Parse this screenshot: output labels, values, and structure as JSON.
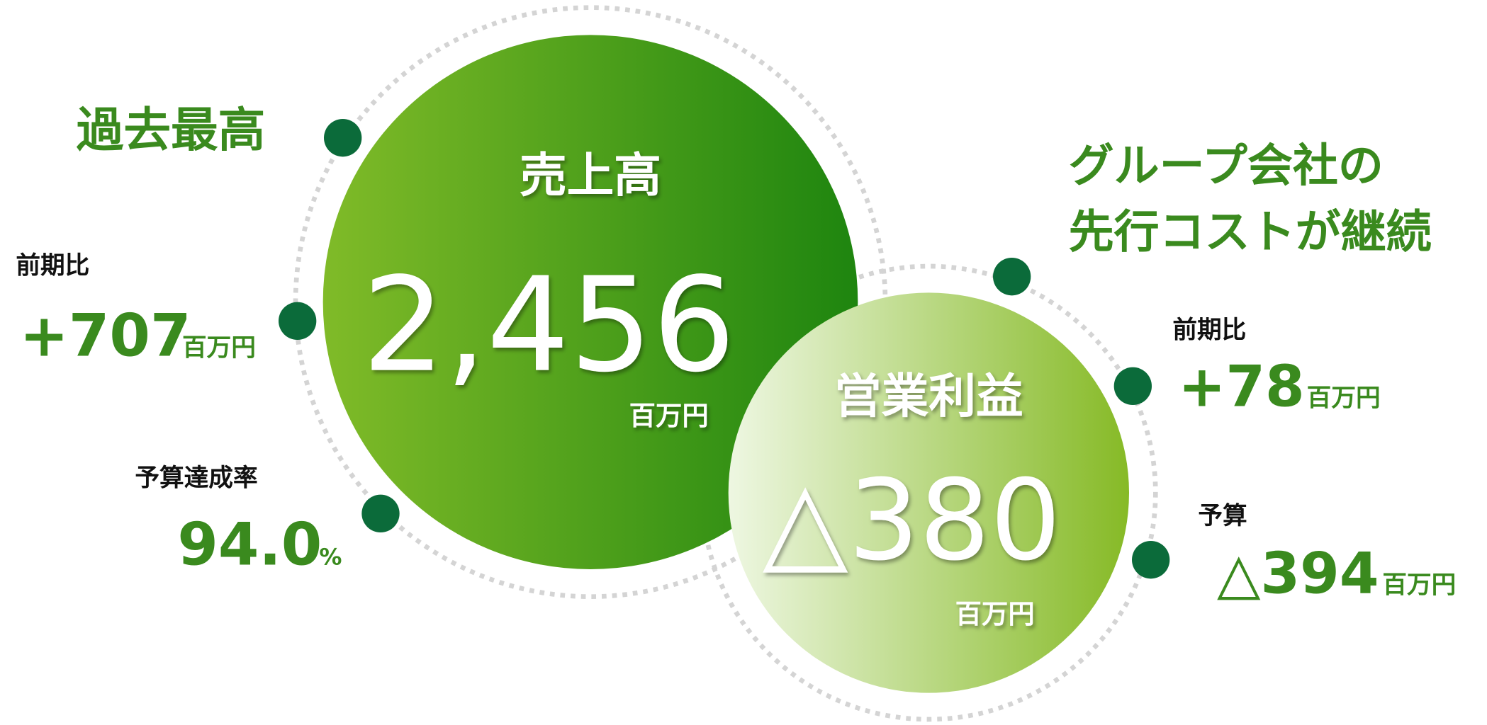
{
  "sales": {
    "note": "過去最高",
    "title": "売上高",
    "value": "2,456",
    "unit": "百万円",
    "yoy": {
      "label": "前期比",
      "value": "+707",
      "unit": "百万円"
    },
    "budget": {
      "label": "予算達成率",
      "value": "94.0",
      "unit": "%"
    }
  },
  "operating_profit": {
    "note": [
      "グループ会社の",
      "先行コストが継続"
    ],
    "title": "営業利益",
    "value": "△380",
    "unit": "百万円",
    "yoy": {
      "label": "前期比",
      "value": "+78",
      "unit": "百万円"
    },
    "budget": {
      "label": "予算",
      "value": "△394",
      "unit": "百万円"
    }
  }
}
